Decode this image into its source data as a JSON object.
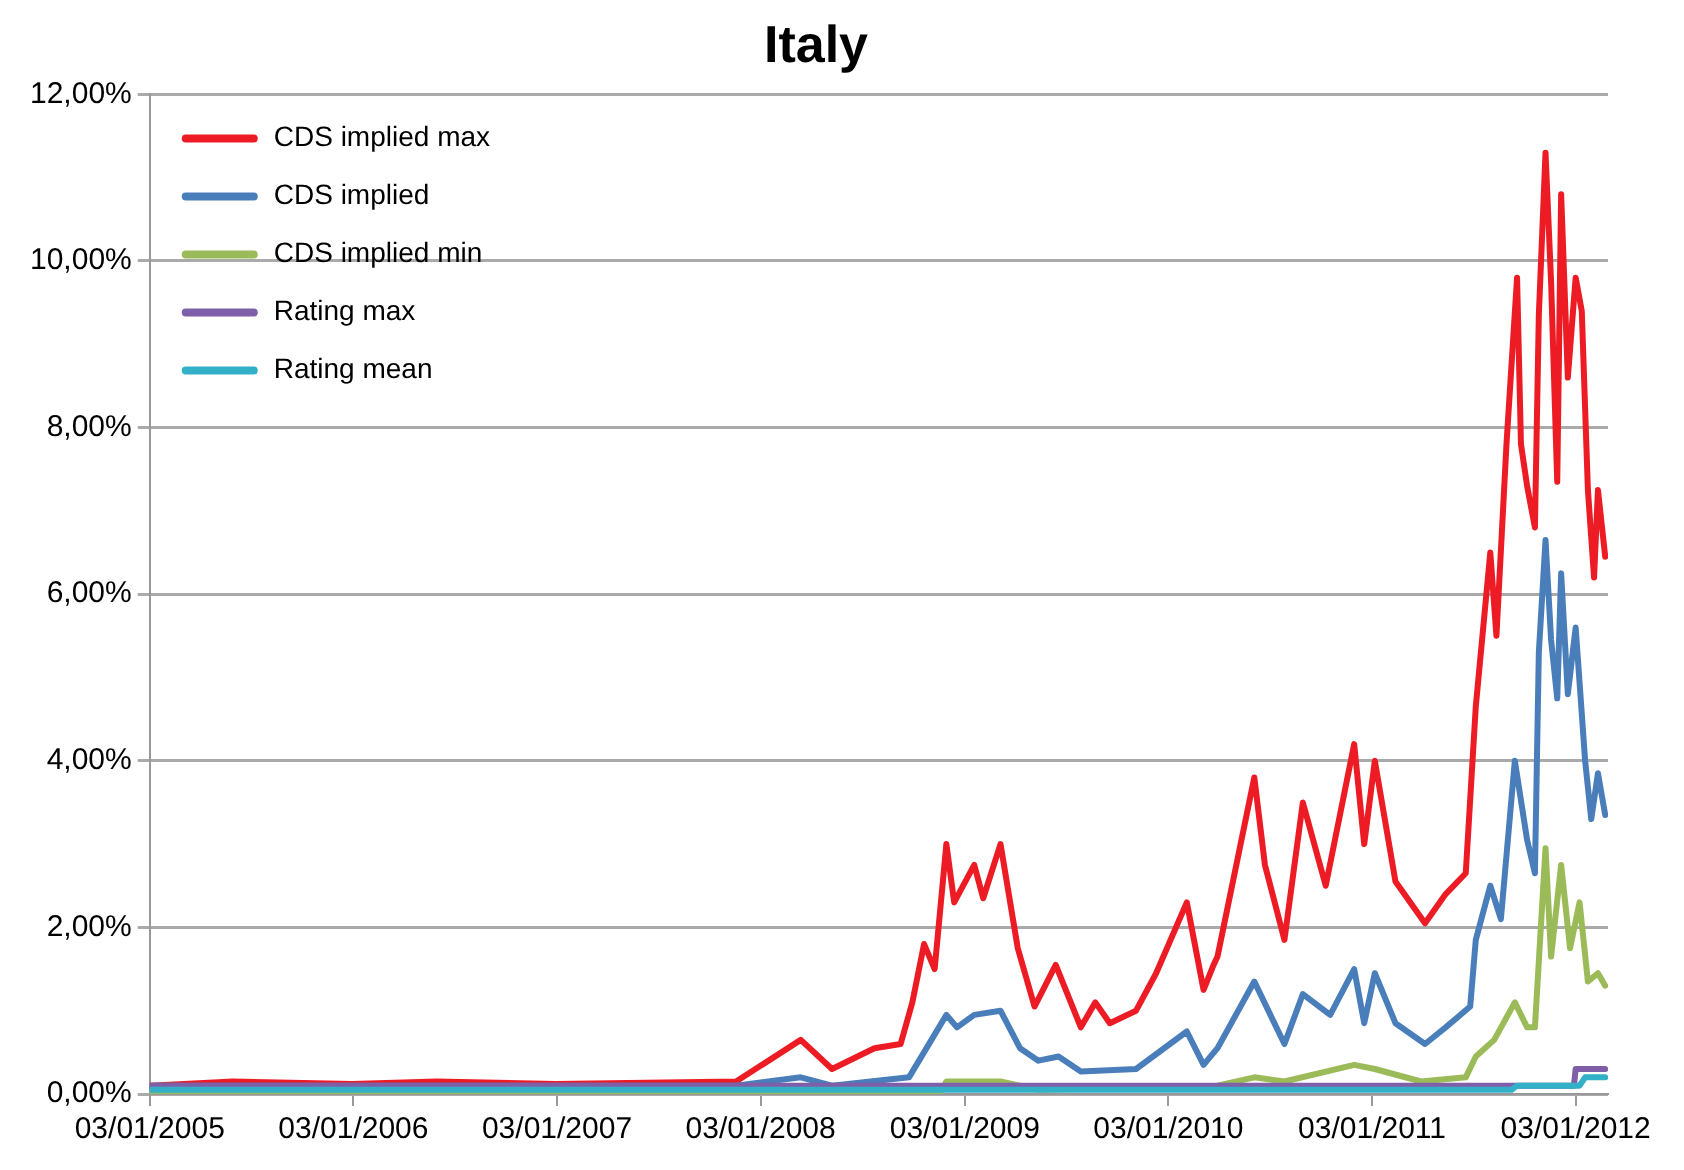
{
  "chart_data": {
    "type": "line",
    "title": "Italy",
    "xlim": [
      "2005-01-03",
      "2012-03-01"
    ],
    "xticks": [
      {
        "value": "2005-01-03",
        "label": "03/01/2005"
      },
      {
        "value": "2006-01-03",
        "label": "03/01/2006"
      },
      {
        "value": "2007-01-03",
        "label": "03/01/2007"
      },
      {
        "value": "2008-01-03",
        "label": "03/01/2008"
      },
      {
        "value": "2009-01-03",
        "label": "03/01/2009"
      },
      {
        "value": "2010-01-03",
        "label": "03/01/2010"
      },
      {
        "value": "2011-01-03",
        "label": "03/01/2011"
      },
      {
        "value": "2012-01-03",
        "label": "03/01/2012"
      }
    ],
    "ylim": [
      0,
      12
    ],
    "yticks": [
      {
        "value": 0,
        "label": "0,00%"
      },
      {
        "value": 2,
        "label": "2,00%"
      },
      {
        "value": 4,
        "label": "4,00%"
      },
      {
        "value": 6,
        "label": "6,00%"
      },
      {
        "value": 8,
        "label": "8,00%"
      },
      {
        "value": 10,
        "label": "10,00%"
      },
      {
        "value": 12,
        "label": "12,00%"
      }
    ],
    "grid": "y",
    "legend": "top left",
    "marker": "none",
    "line_style": "solid",
    "series": [
      {
        "name": "CDS implied max",
        "color": "#ed1c24",
        "x": [
          "2005-01-03",
          "2005-06-01",
          "2006-01-01",
          "2006-06-01",
          "2007-01-01",
          "2007-11-20",
          "2008-03-15",
          "2008-05-10",
          "2008-07-25",
          "2008-09-10",
          "2008-10-01",
          "2008-10-22",
          "2008-11-10",
          "2008-12-01",
          "2008-12-15",
          "2009-01-20",
          "2009-02-05",
          "2009-03-08",
          "2009-04-08",
          "2009-05-08",
          "2009-06-15",
          "2009-07-30",
          "2009-08-25",
          "2009-09-20",
          "2009-11-06",
          "2009-12-12",
          "2010-02-05",
          "2010-03-07",
          "2010-03-25",
          "2010-04-01",
          "2010-06-06",
          "2010-06-25",
          "2010-07-30",
          "2010-09-01",
          "2010-10-12",
          "2010-12-02",
          "2010-12-20",
          "2011-01-08",
          "2011-02-14",
          "2011-04-08",
          "2011-05-15",
          "2011-06-20",
          "2011-07-08",
          "2011-08-03",
          "2011-08-14",
          "2011-09-01",
          "2011-09-20",
          "2011-09-27",
          "2011-10-08",
          "2011-10-22",
          "2011-10-29",
          "2011-11-10",
          "2011-11-20",
          "2011-12-01",
          "2011-12-08",
          "2011-12-20",
          "2012-01-03",
          "2012-01-14",
          "2012-01-25",
          "2012-02-05",
          "2012-02-12",
          "2012-02-25"
        ],
        "values": [
          0.1,
          0.15,
          0.12,
          0.15,
          0.12,
          0.15,
          0.65,
          0.3,
          0.55,
          0.6,
          1.1,
          1.8,
          1.5,
          3.0,
          2.3,
          2.75,
          2.35,
          3.0,
          1.75,
          1.05,
          1.55,
          0.8,
          1.1,
          0.85,
          1.0,
          1.45,
          2.3,
          1.25,
          1.55,
          1.65,
          3.8,
          2.75,
          1.85,
          3.5,
          2.5,
          4.2,
          3.0,
          4.0,
          2.55,
          2.05,
          2.4,
          2.65,
          4.65,
          6.5,
          5.5,
          7.8,
          9.8,
          7.8,
          7.3,
          6.8,
          9.35,
          11.3,
          9.75,
          7.35,
          10.8,
          8.6,
          9.8,
          9.4,
          7.25,
          6.2,
          7.25,
          6.45
        ]
      },
      {
        "name": "CDS implied",
        "color": "#4a7ebb",
        "x": [
          "2005-01-03",
          "2007-11-20",
          "2008-03-15",
          "2008-05-10",
          "2008-09-25",
          "2008-12-01",
          "2008-12-20",
          "2009-01-20",
          "2009-03-08",
          "2009-04-12",
          "2009-05-15",
          "2009-06-20",
          "2009-07-30",
          "2009-11-06",
          "2010-02-05",
          "2010-03-07",
          "2010-04-01",
          "2010-06-06",
          "2010-07-30",
          "2010-09-01",
          "2010-10-20",
          "2010-12-02",
          "2010-12-20",
          "2011-01-08",
          "2011-02-14",
          "2011-04-08",
          "2011-05-15",
          "2011-06-28",
          "2011-07-08",
          "2011-08-03",
          "2011-08-22",
          "2011-09-16",
          "2011-10-08",
          "2011-10-22",
          "2011-10-29",
          "2011-11-10",
          "2011-11-20",
          "2011-12-01",
          "2011-12-08",
          "2011-12-20",
          "2012-01-03",
          "2012-01-20",
          "2012-01-31",
          "2012-02-12",
          "2012-02-25"
        ],
        "values": [
          0.1,
          0.1,
          0.2,
          0.1,
          0.2,
          0.95,
          0.8,
          0.95,
          1.0,
          0.55,
          0.4,
          0.45,
          0.27,
          0.3,
          0.75,
          0.35,
          0.55,
          1.35,
          0.6,
          1.2,
          0.95,
          1.5,
          0.85,
          1.45,
          0.85,
          0.6,
          0.8,
          1.05,
          1.85,
          2.5,
          2.1,
          4.0,
          3.05,
          2.65,
          5.3,
          6.65,
          5.45,
          4.75,
          6.25,
          4.8,
          5.6,
          4.0,
          3.3,
          3.85,
          3.35
        ]
      },
      {
        "name": "CDS implied min",
        "color": "#9bbb59",
        "x": [
          "2005-01-03",
          "2008-11-20",
          "2008-12-01",
          "2009-03-08",
          "2009-05-15",
          "2010-04-01",
          "2010-06-06",
          "2010-07-30",
          "2010-12-02",
          "2011-01-08",
          "2011-04-01",
          "2011-06-20",
          "2011-07-08",
          "2011-08-10",
          "2011-09-16",
          "2011-10-08",
          "2011-10-22",
          "2011-11-10",
          "2011-11-20",
          "2011-12-08",
          "2011-12-24",
          "2012-01-10",
          "2012-01-25",
          "2012-02-12",
          "2012-02-25"
        ],
        "values": [
          0.02,
          0.02,
          0.15,
          0.15,
          0.05,
          0.1,
          0.2,
          0.15,
          0.35,
          0.3,
          0.15,
          0.2,
          0.45,
          0.65,
          1.1,
          0.8,
          0.8,
          2.95,
          1.65,
          2.75,
          1.75,
          2.3,
          1.35,
          1.45,
          1.3
        ]
      },
      {
        "name": "Rating max",
        "color": "#7f5fa8",
        "x": [
          "2005-01-03",
          "2011-12-31",
          "2012-01-03",
          "2012-02-25"
        ],
        "values": [
          0.1,
          0.1,
          0.3,
          0.3
        ]
      },
      {
        "name": "Rating mean",
        "color": "#31b0c8",
        "x": [
          "2005-01-03",
          "2011-09-10",
          "2011-09-20",
          "2012-01-10",
          "2012-01-20",
          "2012-02-25"
        ],
        "values": [
          0.05,
          0.05,
          0.1,
          0.1,
          0.2,
          0.2
        ]
      }
    ]
  }
}
